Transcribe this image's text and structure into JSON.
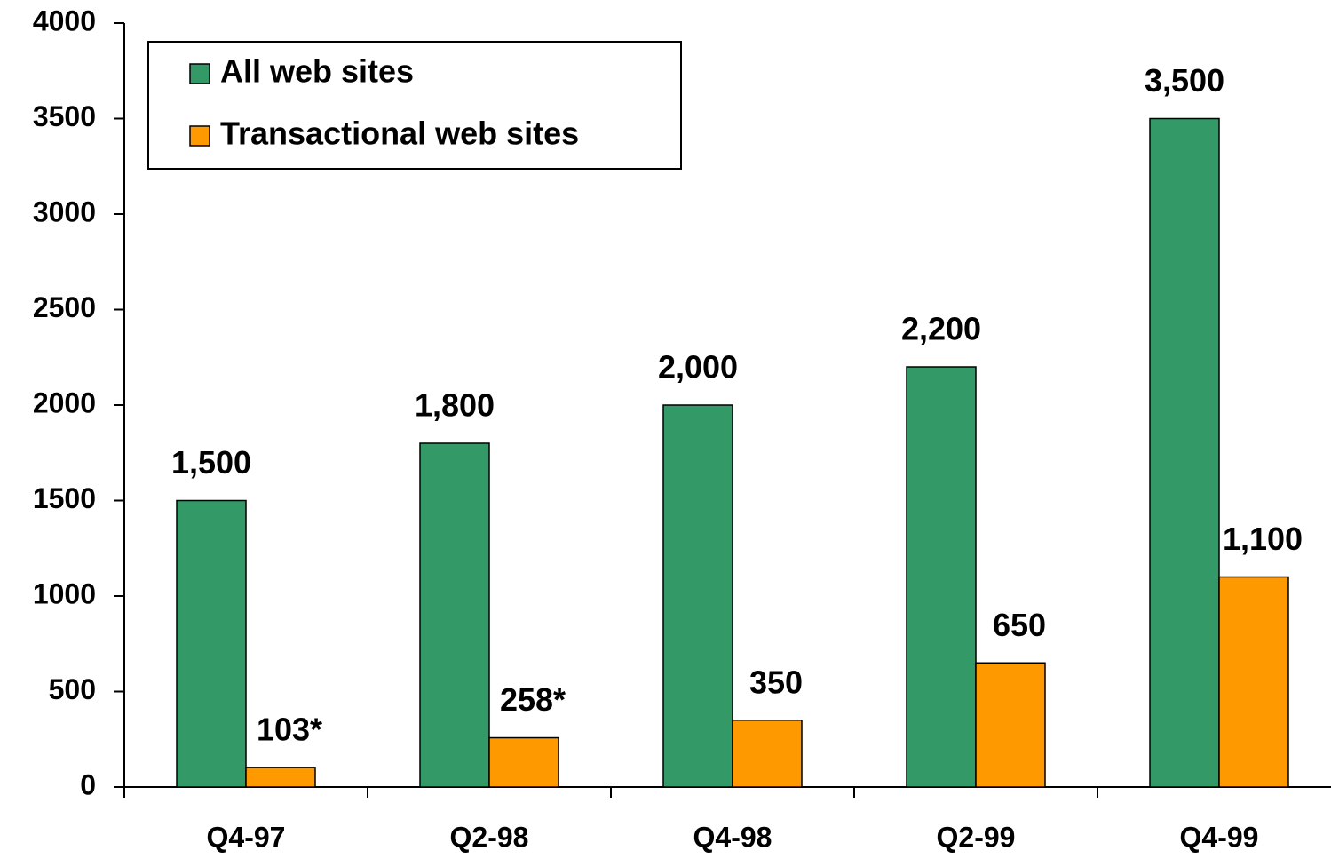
{
  "chart_data": {
    "type": "bar",
    "categories": [
      "Q4-97",
      "Q2-98",
      "Q4-98",
      "Q2-99",
      "Q4-99"
    ],
    "series": [
      {
        "name": "All web sites",
        "color": "#339966",
        "values": [
          1500,
          1800,
          2000,
          2200,
          3500
        ],
        "value_labels": [
          "1,500",
          "1,800",
          "2,000",
          "2,200",
          "3,500"
        ]
      },
      {
        "name": "Transactional web sites",
        "color": "#ff9900",
        "values": [
          103,
          258,
          350,
          650,
          1100
        ],
        "value_labels": [
          "103*",
          "258*",
          "350",
          "650",
          "1,100"
        ]
      }
    ],
    "ylim": [
      0,
      4000
    ],
    "yticks": [
      0,
      500,
      1000,
      1500,
      2000,
      2500,
      3000,
      3500,
      4000
    ],
    "grid": false,
    "legend": "top-left"
  }
}
